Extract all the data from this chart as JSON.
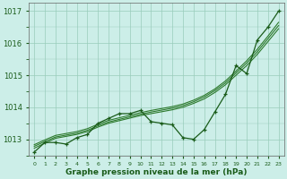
{
  "x": [
    0,
    1,
    2,
    3,
    4,
    5,
    6,
    7,
    8,
    9,
    10,
    11,
    12,
    13,
    14,
    15,
    16,
    17,
    18,
    19,
    20,
    21,
    22,
    23
  ],
  "line_main": [
    1012.6,
    1012.9,
    1012.9,
    1012.85,
    1013.05,
    1013.15,
    1013.5,
    1013.65,
    1013.8,
    1013.8,
    1013.9,
    1013.55,
    1013.5,
    1013.45,
    1013.05,
    1013.0,
    1013.3,
    1013.85,
    1014.4,
    1015.3,
    1015.05,
    1016.1,
    1016.5,
    1017.0
  ],
  "line_trend1": [
    1012.72,
    1012.88,
    1013.03,
    1013.09,
    1013.15,
    1013.24,
    1013.38,
    1013.5,
    1013.58,
    1013.66,
    1013.74,
    1013.8,
    1013.86,
    1013.92,
    1014.0,
    1014.12,
    1014.26,
    1014.46,
    1014.7,
    1015.0,
    1015.3,
    1015.65,
    1016.05,
    1016.45
  ],
  "line_trend2": [
    1012.78,
    1012.93,
    1013.07,
    1013.13,
    1013.19,
    1013.28,
    1013.42,
    1013.54,
    1013.62,
    1013.7,
    1013.78,
    1013.85,
    1013.91,
    1013.97,
    1014.05,
    1014.17,
    1014.32,
    1014.52,
    1014.76,
    1015.07,
    1015.38,
    1015.73,
    1016.14,
    1016.55
  ],
  "line_trend3": [
    1012.83,
    1012.98,
    1013.12,
    1013.18,
    1013.24,
    1013.33,
    1013.47,
    1013.59,
    1013.67,
    1013.75,
    1013.83,
    1013.9,
    1013.96,
    1014.02,
    1014.1,
    1014.22,
    1014.37,
    1014.57,
    1014.82,
    1015.13,
    1015.45,
    1015.81,
    1016.22,
    1016.65
  ],
  "ylim": [
    1012.5,
    1017.25
  ],
  "yticks": [
    1013,
    1014,
    1015,
    1016,
    1017
  ],
  "xlim": [
    -0.5,
    23.5
  ],
  "bg_color": "#cceee8",
  "grid_color": "#99ccbb",
  "line_color_main": "#1a5c1a",
  "line_color_trend": "#2d7a2d",
  "xlabel": "Graphe pression niveau de la mer (hPa)",
  "xlabel_color": "#1a5c1a",
  "tick_color": "#1a5c1a"
}
